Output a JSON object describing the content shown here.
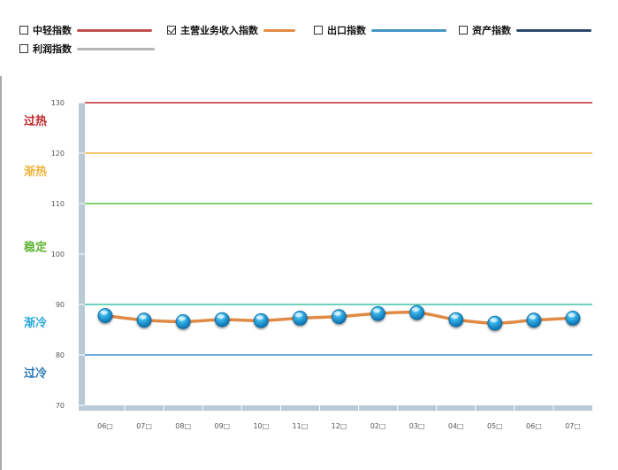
{
  "legend": {
    "items": [
      {
        "label": "中轻指数",
        "checked": false,
        "color": "#c0504d"
      },
      {
        "label": "主营业务收入指数",
        "checked": true,
        "color": "#e38b45"
      },
      {
        "label": "出口指数",
        "checked": false,
        "color": "#4596c8"
      },
      {
        "label": "资产指数",
        "checked": false,
        "color": "#2c4a6e"
      },
      {
        "label": "利润指数",
        "checked": false,
        "color": "#b5b5b5"
      }
    ]
  },
  "chart_data": {
    "type": "line",
    "ylim": [
      70,
      130
    ],
    "y_ticks": [
      "130",
      "120",
      "110",
      "100",
      "90",
      "80",
      "70"
    ],
    "categories": [
      "06□",
      "07□",
      "08□",
      "09□",
      "10□",
      "11□",
      "12□",
      "02□",
      "03□",
      "04□",
      "05□",
      "06□",
      "07□"
    ],
    "series": [
      {
        "name": "主营业务收入指数",
        "color": "#e08a45",
        "values": [
          87.8,
          86.9,
          86.6,
          87.0,
          86.8,
          87.3,
          87.6,
          88.2,
          88.4,
          87.0,
          86.3,
          86.9,
          87.3
        ]
      }
    ],
    "reference_lines": [
      {
        "value": 130,
        "color": "#c0272d"
      },
      {
        "value": 120,
        "color": "#f7b54a"
      },
      {
        "value": 110,
        "color": "#5cc33a"
      },
      {
        "value": 90,
        "color": "#3fc3a8"
      },
      {
        "value": 80,
        "color": "#3b8fd0"
      }
    ],
    "zones": [
      {
        "label": "过热",
        "value": 126.5,
        "color": "#c0272d"
      },
      {
        "label": "渐热",
        "value": 116.5,
        "color": "#f0b43c"
      },
      {
        "label": "稳定",
        "value": 101.5,
        "color": "#5cb531"
      },
      {
        "label": "渐冷",
        "value": 86.5,
        "color": "#29a8d8"
      },
      {
        "label": "过冷",
        "value": 76.5,
        "color": "#2a7ab8"
      }
    ]
  }
}
